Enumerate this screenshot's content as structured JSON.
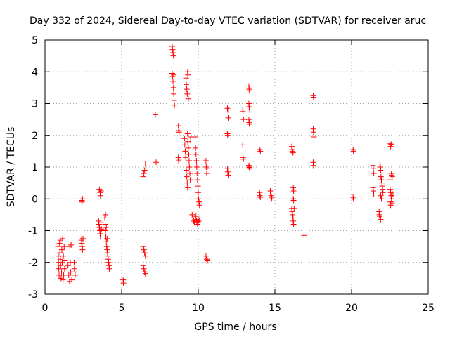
{
  "chart_data": {
    "type": "scatter",
    "title": "Day 332 of 2024, Sidereal Day-to-day VTEC variation (SDTVAR) for receiver aruc",
    "xlabel": "GPS time / hours",
    "ylabel": "SDTVAR / TECUs",
    "xlim": [
      0,
      25
    ],
    "ylim": [
      -3,
      5
    ],
    "xticks": [
      "0",
      "5",
      "10",
      "15",
      "20",
      "25"
    ],
    "yticks": [
      "-3",
      "-2",
      "-1",
      "0",
      "1",
      "2",
      "3",
      "4",
      "5"
    ],
    "grid": true,
    "marker": "+",
    "marker_color": "#ff0000",
    "series": [
      {
        "name": "SDTVAR",
        "points": [
          [
            0.85,
            -1.2
          ],
          [
            0.85,
            -1.5
          ],
          [
            0.87,
            -1.8
          ],
          [
            0.88,
            -2.0
          ],
          [
            0.9,
            -2.2
          ],
          [
            0.92,
            -2.4
          ],
          [
            0.95,
            -1.4
          ],
          [
            0.97,
            -1.7
          ],
          [
            1.0,
            -1.3
          ],
          [
            1.0,
            -1.9
          ],
          [
            1.02,
            -2.1
          ],
          [
            1.05,
            -2.5
          ],
          [
            1.08,
            -2.3
          ],
          [
            1.1,
            -1.6
          ],
          [
            1.12,
            -2.0
          ],
          [
            1.15,
            -1.25
          ],
          [
            1.18,
            -2.55
          ],
          [
            1.2,
            -1.8
          ],
          [
            1.22,
            -2.4
          ],
          [
            1.25,
            -1.5
          ],
          [
            1.28,
            -2.2
          ],
          [
            1.3,
            -1.95
          ],
          [
            1.5,
            -2.1
          ],
          [
            1.55,
            -2.4
          ],
          [
            1.6,
            -2.6
          ],
          [
            1.62,
            -1.5
          ],
          [
            1.65,
            -2.0
          ],
          [
            1.68,
            -2.3
          ],
          [
            1.7,
            -1.45
          ],
          [
            1.75,
            -2.55
          ],
          [
            1.9,
            -2.0
          ],
          [
            1.92,
            -2.2
          ],
          [
            1.95,
            -2.3
          ],
          [
            1.97,
            -2.4
          ],
          [
            2.4,
            -0.05
          ],
          [
            2.42,
            -0.1
          ],
          [
            2.45,
            0.0
          ],
          [
            2.38,
            -1.3
          ],
          [
            2.4,
            -1.4
          ],
          [
            2.42,
            -1.5
          ],
          [
            2.45,
            -1.6
          ],
          [
            2.48,
            -1.25
          ],
          [
            3.5,
            -0.7
          ],
          [
            3.52,
            -0.8
          ],
          [
            3.55,
            -0.9
          ],
          [
            3.58,
            -1.0
          ],
          [
            3.6,
            -1.1
          ],
          [
            3.62,
            -1.2
          ],
          [
            3.65,
            -0.75
          ],
          [
            3.68,
            -0.95
          ],
          [
            3.55,
            0.3
          ],
          [
            3.6,
            0.2
          ],
          [
            3.62,
            0.1
          ],
          [
            3.65,
            0.25
          ],
          [
            3.9,
            -0.6
          ],
          [
            3.92,
            -0.8
          ],
          [
            3.95,
            -1.0
          ],
          [
            3.97,
            -1.2
          ],
          [
            4.0,
            -1.35
          ],
          [
            4.02,
            -1.5
          ],
          [
            4.05,
            -1.6
          ],
          [
            4.08,
            -1.7
          ],
          [
            4.1,
            -1.8
          ],
          [
            4.12,
            -1.9
          ],
          [
            4.15,
            -2.0
          ],
          [
            4.18,
            -2.1
          ],
          [
            4.2,
            -2.2
          ],
          [
            3.95,
            -0.5
          ],
          [
            4.0,
            -0.9
          ],
          [
            4.05,
            -1.25
          ],
          [
            5.1,
            -2.55
          ],
          [
            5.12,
            -2.65
          ],
          [
            6.4,
            0.7
          ],
          [
            6.45,
            0.8
          ],
          [
            6.5,
            0.9
          ],
          [
            6.55,
            1.1
          ],
          [
            6.4,
            -1.5
          ],
          [
            6.45,
            -1.6
          ],
          [
            6.5,
            -1.7
          ],
          [
            6.55,
            -1.8
          ],
          [
            6.4,
            -2.1
          ],
          [
            6.45,
            -2.2
          ],
          [
            6.5,
            -2.3
          ],
          [
            6.55,
            -2.35
          ],
          [
            7.2,
            2.65
          ],
          [
            7.25,
            1.15
          ],
          [
            8.3,
            4.8
          ],
          [
            8.32,
            4.7
          ],
          [
            8.35,
            4.6
          ],
          [
            8.38,
            4.5
          ],
          [
            8.3,
            3.95
          ],
          [
            8.32,
            3.85
          ],
          [
            8.35,
            3.7
          ],
          [
            8.38,
            3.5
          ],
          [
            8.4,
            3.3
          ],
          [
            8.42,
            3.1
          ],
          [
            8.45,
            2.95
          ],
          [
            8.4,
            3.9
          ],
          [
            8.7,
            2.3
          ],
          [
            8.72,
            2.15
          ],
          [
            8.75,
            2.1
          ],
          [
            8.7,
            1.3
          ],
          [
            8.72,
            1.2
          ],
          [
            8.75,
            1.25
          ],
          [
            9.2,
            3.8
          ],
          [
            9.22,
            3.6
          ],
          [
            9.25,
            3.45
          ],
          [
            9.28,
            3.3
          ],
          [
            9.3,
            4.0
          ],
          [
            9.32,
            3.9
          ],
          [
            9.35,
            3.15
          ],
          [
            9.1,
            1.9
          ],
          [
            9.12,
            1.7
          ],
          [
            9.15,
            1.5
          ],
          [
            9.18,
            1.3
          ],
          [
            9.2,
            1.1
          ],
          [
            9.22,
            0.9
          ],
          [
            9.25,
            0.7
          ],
          [
            9.28,
            0.5
          ],
          [
            9.3,
            0.35
          ],
          [
            9.32,
            1.8
          ],
          [
            9.35,
            1.6
          ],
          [
            9.38,
            1.4
          ],
          [
            9.4,
            1.2
          ],
          [
            9.42,
            1.0
          ],
          [
            9.45,
            0.8
          ],
          [
            9.48,
            0.6
          ],
          [
            9.5,
            1.85
          ],
          [
            9.52,
            1.95
          ],
          [
            9.3,
            2.05
          ],
          [
            9.8,
            1.95
          ],
          [
            9.82,
            1.6
          ],
          [
            9.85,
            1.4
          ],
          [
            9.88,
            1.2
          ],
          [
            9.9,
            1.0
          ],
          [
            9.92,
            0.8
          ],
          [
            9.95,
            0.6
          ],
          [
            9.98,
            0.4
          ],
          [
            10.0,
            0.2
          ],
          [
            10.02,
            0.0
          ],
          [
            10.05,
            -0.1
          ],
          [
            10.08,
            -0.2
          ],
          [
            9.6,
            -0.5
          ],
          [
            9.65,
            -0.6
          ],
          [
            9.7,
            -0.7
          ],
          [
            9.75,
            -0.75
          ],
          [
            9.8,
            -0.65
          ],
          [
            9.85,
            -0.55
          ],
          [
            9.9,
            -0.7
          ],
          [
            9.95,
            -0.8
          ],
          [
            10.0,
            -0.72
          ],
          [
            10.05,
            -0.68
          ],
          [
            10.1,
            -0.6
          ],
          [
            10.5,
            1.2
          ],
          [
            10.52,
            1.0
          ],
          [
            10.55,
            0.8
          ],
          [
            10.58,
            0.95
          ],
          [
            10.5,
            -1.8
          ],
          [
            10.55,
            -1.9
          ],
          [
            10.6,
            -1.95
          ],
          [
            11.9,
            2.85
          ],
          [
            11.92,
            2.8
          ],
          [
            11.95,
            2.55
          ],
          [
            11.9,
            2.05
          ],
          [
            11.92,
            2.0
          ],
          [
            11.9,
            0.95
          ],
          [
            11.92,
            0.85
          ],
          [
            11.95,
            0.75
          ],
          [
            12.9,
            2.8
          ],
          [
            12.92,
            2.75
          ],
          [
            12.95,
            2.5
          ],
          [
            12.9,
            1.7
          ],
          [
            12.92,
            1.3
          ],
          [
            12.95,
            1.25
          ],
          [
            13.3,
            3.55
          ],
          [
            13.32,
            3.45
          ],
          [
            13.35,
            3.4
          ],
          [
            13.3,
            3.0
          ],
          [
            13.32,
            2.9
          ],
          [
            13.35,
            2.8
          ],
          [
            13.3,
            2.5
          ],
          [
            13.32,
            2.4
          ],
          [
            13.35,
            2.35
          ],
          [
            13.3,
            1.05
          ],
          [
            13.32,
            1.0
          ],
          [
            13.35,
            0.98
          ],
          [
            14.0,
            1.55
          ],
          [
            14.05,
            1.5
          ],
          [
            14.0,
            0.2
          ],
          [
            14.02,
            0.1
          ],
          [
            14.05,
            0.05
          ],
          [
            14.7,
            0.25
          ],
          [
            14.72,
            0.15
          ],
          [
            14.75,
            0.1
          ],
          [
            14.78,
            0.05
          ],
          [
            14.8,
            0.0
          ],
          [
            16.1,
            1.65
          ],
          [
            16.12,
            1.55
          ],
          [
            16.15,
            1.5
          ],
          [
            16.18,
            1.45
          ],
          [
            16.2,
            0.35
          ],
          [
            16.22,
            0.25
          ],
          [
            16.2,
            0.0
          ],
          [
            16.22,
            -0.05
          ],
          [
            16.1,
            -0.3
          ],
          [
            16.12,
            -0.4
          ],
          [
            16.15,
            -0.5
          ],
          [
            16.18,
            -0.6
          ],
          [
            16.2,
            -0.7
          ],
          [
            16.22,
            -0.8
          ],
          [
            16.25,
            -0.3
          ],
          [
            16.9,
            -1.15
          ],
          [
            17.5,
            3.25
          ],
          [
            17.52,
            3.2
          ],
          [
            17.5,
            2.2
          ],
          [
            17.52,
            2.1
          ],
          [
            17.55,
            1.95
          ],
          [
            17.5,
            1.15
          ],
          [
            17.52,
            1.05
          ],
          [
            20.1,
            1.55
          ],
          [
            20.12,
            1.5
          ],
          [
            20.1,
            0.05
          ],
          [
            20.12,
            0.0
          ],
          [
            21.4,
            1.05
          ],
          [
            21.42,
            0.95
          ],
          [
            21.45,
            0.8
          ],
          [
            21.4,
            0.35
          ],
          [
            21.42,
            0.25
          ],
          [
            21.45,
            0.15
          ],
          [
            21.8,
            -0.4
          ],
          [
            21.82,
            -0.5
          ],
          [
            21.85,
            -0.55
          ],
          [
            21.88,
            -0.6
          ],
          [
            21.9,
            -0.65
          ],
          [
            21.85,
            1.1
          ],
          [
            21.88,
            1.0
          ],
          [
            21.9,
            0.9
          ],
          [
            21.92,
            0.7
          ],
          [
            21.95,
            0.6
          ],
          [
            21.98,
            0.5
          ],
          [
            22.0,
            0.4
          ],
          [
            22.02,
            0.3
          ],
          [
            22.05,
            0.2
          ],
          [
            21.9,
            0.1
          ],
          [
            21.95,
            0.0
          ],
          [
            22.5,
            1.75
          ],
          [
            22.52,
            1.7
          ],
          [
            22.55,
            1.65
          ],
          [
            22.58,
            1.72
          ],
          [
            22.6,
            0.8
          ],
          [
            22.62,
            0.75
          ],
          [
            22.65,
            0.7
          ],
          [
            22.5,
            0.6
          ],
          [
            22.52,
            0.3
          ],
          [
            22.55,
            0.2
          ],
          [
            22.58,
            0.1
          ],
          [
            22.6,
            0.0
          ],
          [
            22.62,
            -0.1
          ],
          [
            22.65,
            -0.15
          ],
          [
            22.7,
            0.15
          ],
          [
            22.5,
            -0.1
          ],
          [
            22.55,
            -0.2
          ]
        ]
      }
    ]
  }
}
